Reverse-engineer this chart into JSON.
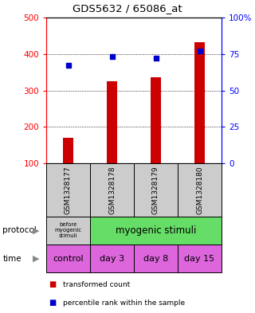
{
  "title": "GDS5632 / 65086_at",
  "samples": [
    "GSM1328177",
    "GSM1328178",
    "GSM1328179",
    "GSM1328180"
  ],
  "bar_values": [
    170,
    325,
    335,
    432
  ],
  "percentile_values": [
    67,
    73,
    72,
    77
  ],
  "bar_color": "#cc0000",
  "dot_color": "#0000cc",
  "ylim_left": [
    100,
    500
  ],
  "ylim_right": [
    0,
    100
  ],
  "yticks_left": [
    100,
    200,
    300,
    400,
    500
  ],
  "yticks_right": [
    0,
    25,
    50,
    75,
    100
  ],
  "ytick_labels_right": [
    "0",
    "25",
    "50",
    "75",
    "100%"
  ],
  "grid_values": [
    200,
    300,
    400
  ],
  "sample_bg_color": "#cccccc",
  "protocol_colors": [
    "#cccccc",
    "#66dd66"
  ],
  "protocol_labels": [
    "before\nmyogenic\nstimuli",
    "myogenic stimuli"
  ],
  "time_color": "#dd66dd",
  "time_labels": [
    "control",
    "day 3",
    "day 8",
    "day 15"
  ],
  "legend_label_red": "transformed count",
  "legend_label_blue": "percentile rank within the sample",
  "bg_color": "#ffffff"
}
